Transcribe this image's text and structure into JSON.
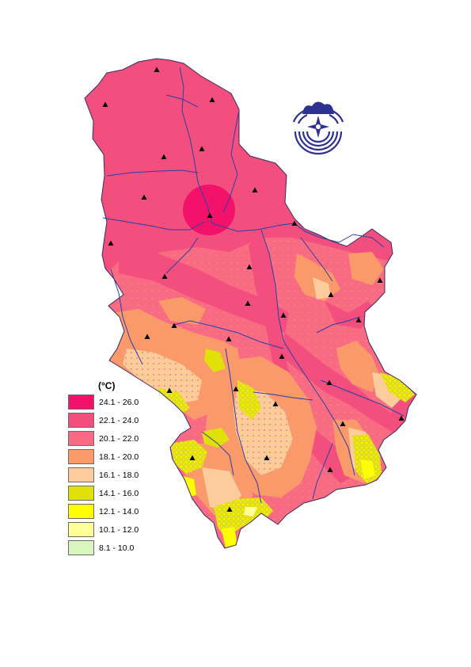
{
  "legend": {
    "unit_label": "(°C)",
    "classes": [
      {
        "label": "24.1 - 26.0",
        "color": "#f2126a"
      },
      {
        "label": "22.1 - 24.0",
        "color": "#f24f7e"
      },
      {
        "label": "20.1 - 22.0",
        "color": "#f86b83"
      },
      {
        "label": "18.1 - 20.0",
        "color": "#fa9a6a"
      },
      {
        "label": "16.1 - 18.0",
        "color": "#fdcc9c"
      },
      {
        "label": "14.1 - 16.0",
        "color": "#e1e10a"
      },
      {
        "label": "12.1 - 14.0",
        "color": "#ffff00"
      },
      {
        "label": "10.1 - 12.0",
        "color": "#ffff99"
      },
      {
        "label": "8.1 - 10.0",
        "color": "#d9f5c0"
      }
    ]
  },
  "colors": {
    "river": "#2a3fa6",
    "border": "#3a2a5e",
    "station_marker": "#000000",
    "logo": "#2e3191"
  },
  "icons": {
    "station": "triangle-marker-icon",
    "logo": "institute-logo-icon"
  }
}
